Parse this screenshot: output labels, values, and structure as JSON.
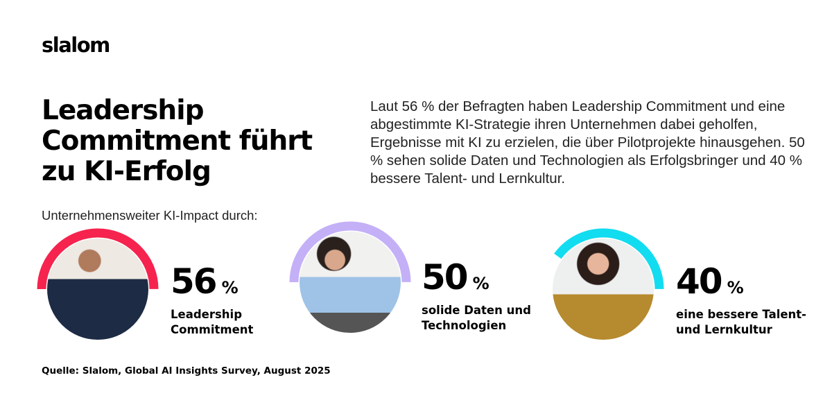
{
  "logo": "slalom",
  "title": "Leadership Commitment führt zu KI-Erfolg",
  "intro": "Laut 56 % der Befragten haben Leadership Commitment und eine abgestimmte KI-Strategie ihren Unternehmen dabei geholfen, Ergebnisse mit KI zu erzielen, die über Pilotprojekte hinausgehen. 50 % sehen solide Daten und Technologien als Erfolgsbringer und 40 % bessere Talent- und Lernkultur.",
  "subhead": "Unternehmensweiter KI-Impact durch:",
  "stats": [
    {
      "value": "56",
      "unit": "%",
      "percent": 56,
      "label_line1": "Leadership",
      "label_line2": "Commitment",
      "color": "#f5234e",
      "photo": "man-with-glasses-at-laptop"
    },
    {
      "value": "50",
      "unit": "%",
      "percent": 50,
      "label_line1": "solide Daten und",
      "label_line2": "Technologien",
      "color": "#c4b0f7",
      "photo": "woman-pointing-at-laptop"
    },
    {
      "value": "40",
      "unit": "%",
      "percent": 40,
      "label_line1": "eine bessere Talent-",
      "label_line2": "und Lernkultur",
      "color": "#12dcf0",
      "photo": "smiling-woman-with-tablet"
    }
  ],
  "source": "Quelle: Slalom, Global AI Insights Survey, August 2025"
}
